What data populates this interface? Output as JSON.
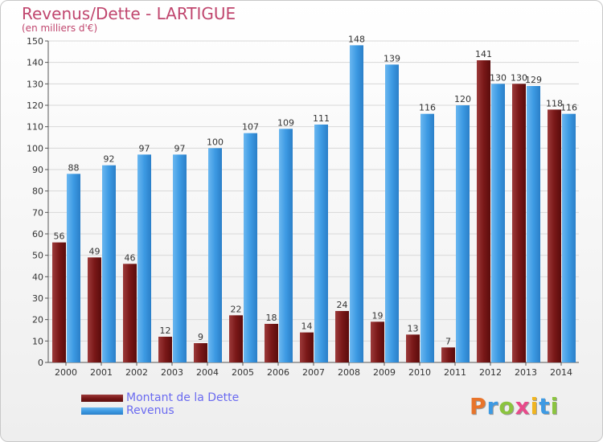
{
  "title": "Revenus/Dette - LARTIGUE",
  "subtitle": "(en milliers d'€)",
  "logo": "Proxiti",
  "colors": {
    "dette": "#7a1818",
    "revenus": "#3d9ae3",
    "text": "#c0466e",
    "legend_text": "#6a6af0",
    "grid": "#d8d8d8"
  },
  "chart_data": {
    "type": "bar",
    "title": "Revenus/Dette - LARTIGUE",
    "ylabel": "(en milliers d'€)",
    "ylim": [
      0,
      150
    ],
    "yticks": [
      0,
      10,
      20,
      30,
      40,
      50,
      60,
      70,
      80,
      90,
      100,
      110,
      120,
      130,
      140,
      150
    ],
    "grid": true,
    "legend_position": "bottom-left",
    "categories": [
      "2000",
      "2001",
      "2002",
      "2003",
      "2004",
      "2005",
      "2006",
      "2007",
      "2008",
      "2009",
      "2010",
      "2011",
      "2012",
      "2013",
      "2014"
    ],
    "series": [
      {
        "name": "Montant de la Dette",
        "values": [
          56,
          49,
          46,
          12,
          9,
          22,
          18,
          14,
          24,
          19,
          13,
          7,
          141,
          130,
          118
        ]
      },
      {
        "name": "Revenus",
        "values": [
          88,
          92,
          97,
          97,
          100,
          107,
          109,
          111,
          148,
          139,
          116,
          120,
          130,
          129,
          116
        ]
      }
    ]
  }
}
